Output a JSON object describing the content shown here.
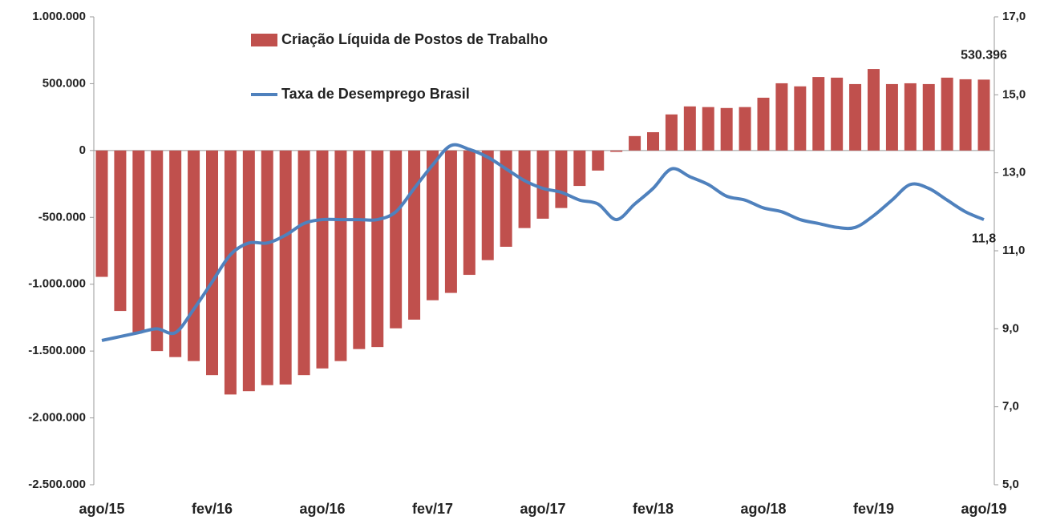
{
  "chart_data": {
    "type": "bar_line",
    "legend": "top-left",
    "categories": [
      "ago/15",
      null,
      null,
      null,
      null,
      null,
      "fev/16",
      null,
      null,
      null,
      null,
      null,
      "ago/16",
      null,
      null,
      null,
      null,
      null,
      "fev/17",
      null,
      null,
      null,
      null,
      null,
      "ago/17",
      null,
      null,
      null,
      null,
      null,
      "fev/18",
      null,
      null,
      null,
      null,
      null,
      "ago/18",
      null,
      null,
      null,
      null,
      null,
      "fev/19",
      null,
      null,
      null,
      null,
      null,
      "ago/19"
    ],
    "series": [
      {
        "name": "Criação Líquida de Postos de Trabalho",
        "type": "bar",
        "color": "#c0504d",
        "values": [
          -945000,
          -1200000,
          -1360000,
          -1500000,
          -1545000,
          -1575000,
          -1680000,
          -1825000,
          -1800000,
          -1755000,
          -1750000,
          -1680000,
          -1630000,
          -1575000,
          -1485000,
          -1470000,
          -1330000,
          -1265000,
          -1120000,
          -1065000,
          -930000,
          -820000,
          -720000,
          -580000,
          -510000,
          -430000,
          -265000,
          -150000,
          -10000,
          108000,
          137000,
          270000,
          330000,
          325000,
          318000,
          325000,
          395000,
          503000,
          480000,
          550000,
          545000,
          497000,
          610000,
          497000,
          503000,
          497000,
          545000,
          533000,
          530396
        ],
        "value_labels": [
          null,
          null,
          null,
          null,
          null,
          null,
          null,
          null,
          null,
          null,
          null,
          null,
          null,
          null,
          null,
          null,
          null,
          null,
          null,
          null,
          null,
          null,
          null,
          null,
          null,
          null,
          null,
          null,
          null,
          null,
          null,
          null,
          null,
          null,
          null,
          null,
          null,
          null,
          null,
          null,
          null,
          null,
          null,
          null,
          null,
          null,
          null,
          null,
          "530.396"
        ]
      },
      {
        "name": "Taxa de Desemprego Brasil",
        "type": "line",
        "axis": "y2",
        "color": "#4f81bd",
        "values": [
          8.7,
          8.8,
          8.9,
          9.0,
          8.9,
          9.5,
          10.2,
          10.9,
          11.2,
          11.2,
          11.4,
          11.7,
          11.8,
          11.8,
          11.8,
          11.8,
          12.0,
          12.6,
          13.2,
          13.7,
          13.6,
          13.4,
          13.1,
          12.8,
          12.6,
          12.5,
          12.3,
          12.2,
          11.8,
          12.2,
          12.6,
          13.1,
          12.9,
          12.7,
          12.4,
          12.3,
          12.1,
          12.0,
          11.8,
          11.7,
          11.6,
          11.6,
          11.9,
          12.3,
          12.7,
          12.6,
          12.3,
          12.0,
          11.8
        ],
        "value_labels": [
          null,
          null,
          null,
          null,
          null,
          null,
          null,
          null,
          null,
          null,
          null,
          null,
          null,
          null,
          null,
          null,
          null,
          null,
          null,
          null,
          null,
          null,
          null,
          null,
          null,
          null,
          null,
          null,
          null,
          null,
          null,
          null,
          null,
          null,
          null,
          null,
          null,
          null,
          null,
          null,
          null,
          null,
          null,
          null,
          null,
          null,
          null,
          null,
          "11,8"
        ]
      }
    ],
    "ylim": [
      -2500000,
      1000000
    ],
    "yticks": [
      {
        "value": -2500000,
        "label": "-2.500.000"
      },
      {
        "value": -2000000,
        "label": "-2.000.000"
      },
      {
        "value": -1500000,
        "label": "-1.500.000"
      },
      {
        "value": -1000000,
        "label": "-1.000.000"
      },
      {
        "value": -500000,
        "label": "-500.000"
      },
      0,
      {
        "value": 500000,
        "label": "500.000"
      },
      {
        "value": 1000000,
        "label": "1.000.000"
      }
    ],
    "y2lim": [
      5,
      17
    ],
    "y2ticks": [
      {
        "value": 5,
        "label": "5,0"
      },
      {
        "value": 7,
        "label": "7,0"
      },
      {
        "value": 9,
        "label": "9,0"
      },
      {
        "value": 11,
        "label": "11,0"
      },
      {
        "value": 13,
        "label": "13,0"
      },
      {
        "value": 15,
        "label": "15,0"
      },
      {
        "value": 17,
        "label": "17,0"
      }
    ]
  }
}
